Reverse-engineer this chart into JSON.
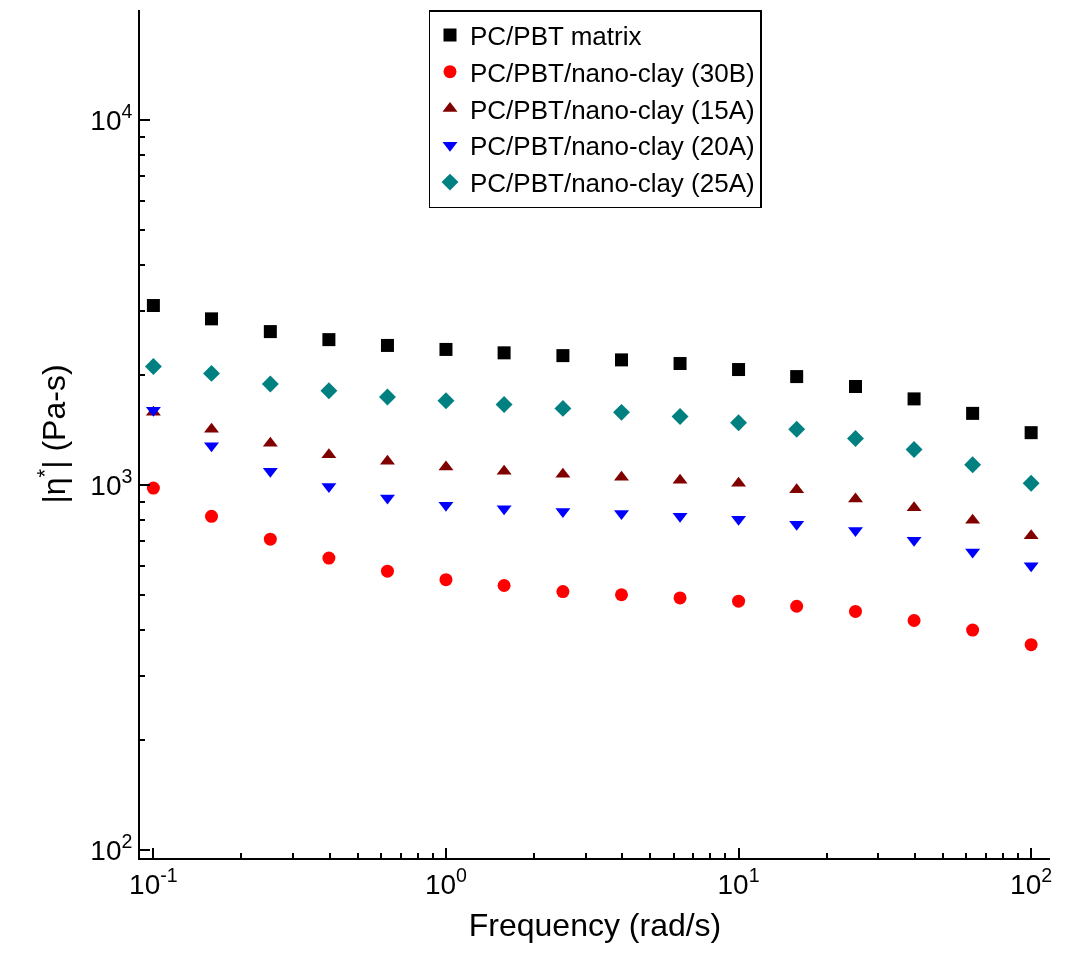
{
  "chart_data": {
    "type": "scatter",
    "xlabel": "Frequency (rad/s)",
    "ylabel": "|η$^{*}$| (Pa-s)",
    "log": "xy",
    "legend": "top",
    "xlim": [
      0.09,
      116
    ],
    "ylim": [
      95,
      20000
    ],
    "xticks": [
      {
        "value": 0.1,
        "label": "10$^{-1}$"
      },
      {
        "value": 1,
        "label": "10$^{0}$"
      },
      {
        "value": 10,
        "label": "10$^{1}$"
      },
      {
        "value": 100,
        "label": "10$^{2}$"
      }
    ],
    "yticks": [
      {
        "value": 100,
        "label": "10$^{2}$"
      },
      {
        "value": 1000,
        "label": "10$^{3}$"
      },
      {
        "value": 10000,
        "label": "10$^{4}$"
      }
    ],
    "x": [
      0.1,
      0.158,
      0.251,
      0.398,
      0.631,
      1,
      1.58,
      2.51,
      3.98,
      6.31,
      10,
      15.8,
      25.1,
      39.8,
      63.1,
      100
    ],
    "series": [
      {
        "name": "PC/PBT matrix",
        "color": "#000000",
        "marker": "square",
        "values": [
          3100,
          2850,
          2630,
          2500,
          2410,
          2350,
          2300,
          2260,
          2200,
          2150,
          2070,
          1980,
          1860,
          1720,
          1570,
          1390
        ]
      },
      {
        "name": "PC/PBT/nano-clay (30B)",
        "color": "#ff0000",
        "marker": "circle",
        "values": [
          980,
          820,
          710,
          630,
          580,
          550,
          530,
          510,
          500,
          490,
          480,
          465,
          450,
          425,
          400,
          365
        ]
      },
      {
        "name": "PC/PBT/nano-clay (15A)",
        "color": "#800000",
        "marker": "triangle",
        "values": [
          1580,
          1420,
          1300,
          1210,
          1160,
          1120,
          1090,
          1070,
          1050,
          1030,
          1010,
          970,
          915,
          865,
          800,
          725
        ]
      },
      {
        "name": "PC/PBT/nano-clay (20A)",
        "color": "#0000ff",
        "marker": "triangle-down",
        "values": [
          1600,
          1280,
          1090,
          990,
          920,
          880,
          860,
          845,
          835,
          820,
          805,
          780,
          750,
          705,
          655,
          600
        ]
      },
      {
        "name": "PC/PBT/nano-clay (25A)",
        "color": "#008080",
        "marker": "diamond",
        "values": [
          2110,
          2020,
          1890,
          1810,
          1740,
          1700,
          1660,
          1620,
          1580,
          1540,
          1480,
          1420,
          1340,
          1250,
          1135,
          1010
        ]
      }
    ]
  }
}
